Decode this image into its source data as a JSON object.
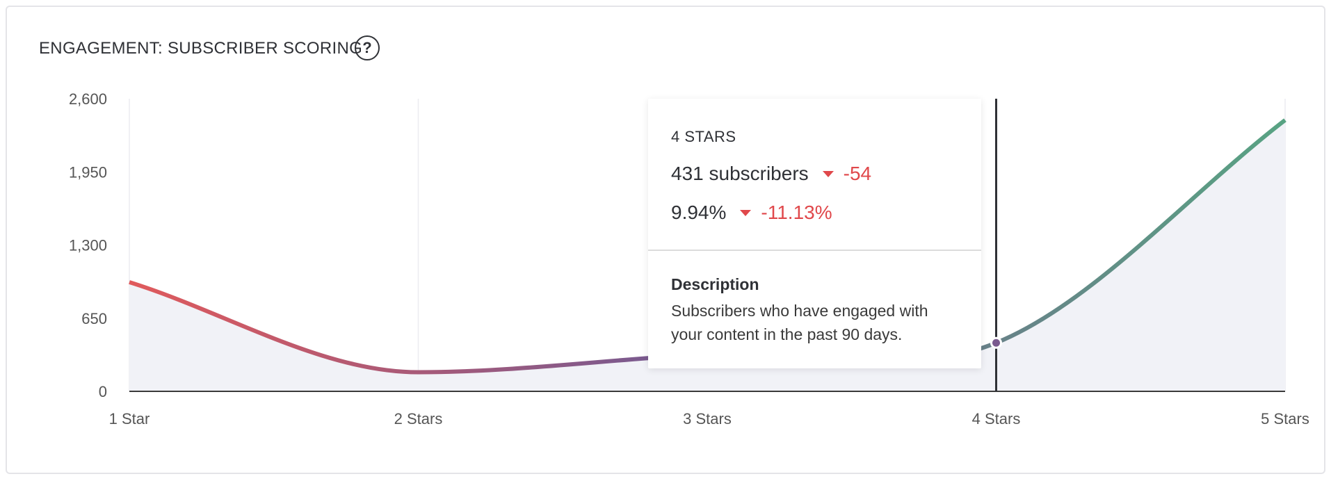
{
  "header": {
    "title": "ENGAGEMENT: SUBSCRIBER SCORING",
    "help_icon": "question-circle-icon",
    "help_glyph": "?"
  },
  "colors": {
    "line_start": "#e05a5c",
    "line_mid": "#7a5a8f",
    "line_end": "#58a383",
    "area_fill": "#f1f2f7",
    "negative": "#e0484b",
    "cursor": "#2f3136"
  },
  "chart_data": {
    "type": "area",
    "title": "ENGAGEMENT: SUBSCRIBER SCORING",
    "categories": [
      "1 Star",
      "2 Stars",
      "3 Stars",
      "4 Stars",
      "5 Stars"
    ],
    "values": [
      970,
      170,
      330,
      431,
      2410
    ],
    "ylim": [
      0,
      2600
    ],
    "yticks": [
      "2,600",
      "1,950",
      "1,300",
      "650",
      "0"
    ],
    "ytick_values": [
      2600,
      1950,
      1300,
      650,
      0
    ],
    "grid": "vertical",
    "highlighted_index": 3
  },
  "tooltip": {
    "label": "4 STARS",
    "count_text": "431 subscribers",
    "count_change": "-54",
    "percent_text": "9.94%",
    "percent_change": "-11.13%",
    "description_title": "Description",
    "description": "Subscribers who have engaged with your content in the past 90 days."
  }
}
